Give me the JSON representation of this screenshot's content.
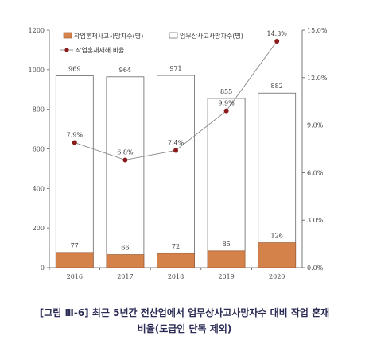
{
  "chart_data": {
    "type": "bar",
    "categories": [
      "2016",
      "2017",
      "2018",
      "2019",
      "2020"
    ],
    "series": [
      {
        "name": "작업혼재사고사망자수(명)",
        "type": "bar",
        "axis": "left",
        "color": "#d4824a",
        "values": [
          77,
          66,
          72,
          85,
          126
        ]
      },
      {
        "name": "업무상사고사망자수(명)",
        "type": "bar",
        "axis": "left",
        "color": "#ffffff",
        "values": [
          969,
          964,
          971,
          855,
          882
        ]
      },
      {
        "name": "작업혼재재해 비율",
        "type": "line",
        "axis": "right",
        "color": "#8b1a1a",
        "values": [
          7.9,
          6.8,
          7.4,
          9.9,
          14.3
        ],
        "labels": [
          "7.9%",
          "6.8%",
          "7.4%",
          "9.9%",
          "14.3%"
        ]
      }
    ],
    "y_left": {
      "min": 0,
      "max": 1200,
      "ticks": [
        "0",
        "200",
        "400",
        "600",
        "800",
        "1000",
        "1200"
      ]
    },
    "y_right": {
      "min": 0,
      "max": 15,
      "ticks": [
        "0.0%",
        "3.0%",
        "6.0%",
        "9.0%",
        "12.0%",
        "15.0%"
      ]
    },
    "legend_position": "top-left",
    "grid": false
  },
  "caption": {
    "line1": "[그림 Ⅲ-6] 최근 5년간 전산업에서 업무상사고사망자수 대비 작업 혼재",
    "line2": "비율(도급인 단독 제외)"
  }
}
